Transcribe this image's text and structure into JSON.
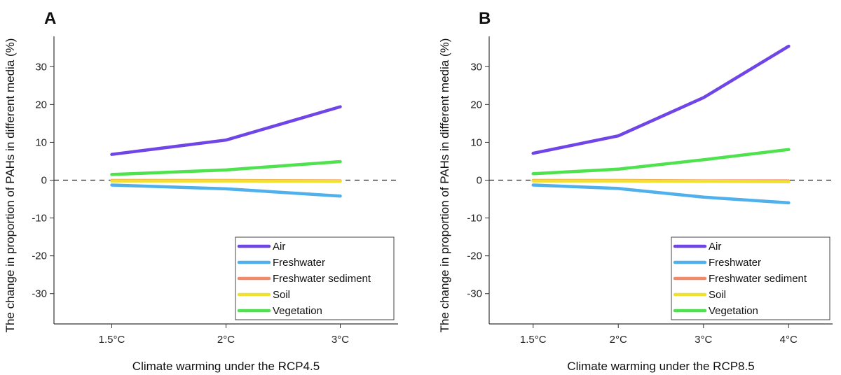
{
  "chart_data": [
    {
      "panel": "A",
      "type": "line",
      "xlabel": "Climate warming under the RCP4.5",
      "ylabel": "The change in proportion of PAHs in different media (%)",
      "categories": [
        "1.5°C",
        "2°C",
        "3°C"
      ],
      "ylim": [
        -38,
        38
      ],
      "yticks": [
        30,
        20,
        10,
        0,
        -10,
        -20,
        -30
      ],
      "reference_line": 0,
      "legend_position": "bottom-right",
      "series": [
        {
          "name": "Air",
          "color": "#6f45e8",
          "values": [
            6.8,
            10.6,
            19.4
          ]
        },
        {
          "name": "Freshwater",
          "color": "#4fb0ec",
          "values": [
            -1.3,
            -2.3,
            -4.2
          ]
        },
        {
          "name": "Freshwater sediment",
          "color": "#f08a6a",
          "values": [
            -0.1,
            -0.1,
            -0.2
          ]
        },
        {
          "name": "Soil",
          "color": "#f2e02e",
          "values": [
            -0.2,
            -0.2,
            -0.3
          ]
        },
        {
          "name": "Vegetation",
          "color": "#4fe24f",
          "values": [
            1.5,
            2.7,
            4.9
          ]
        }
      ]
    },
    {
      "panel": "B",
      "type": "line",
      "xlabel": "Climate warming under the RCP8.5",
      "ylabel": "The change in proportion of PAHs in different media (%)",
      "categories": [
        "1.5°C",
        "2°C",
        "3°C",
        "4°C"
      ],
      "ylim": [
        -38,
        38
      ],
      "yticks": [
        30,
        20,
        10,
        0,
        -10,
        -20,
        -30
      ],
      "reference_line": 0,
      "legend_position": "bottom-right",
      "series": [
        {
          "name": "Air",
          "color": "#6f45e8",
          "values": [
            7.1,
            11.7,
            21.8,
            35.4
          ]
        },
        {
          "name": "Freshwater",
          "color": "#4fb0ec",
          "values": [
            -1.3,
            -2.2,
            -4.5,
            -6.0
          ]
        },
        {
          "name": "Freshwater sediment",
          "color": "#f08a6a",
          "values": [
            -0.1,
            -0.1,
            -0.2,
            -0.2
          ]
        },
        {
          "name": "Soil",
          "color": "#f2e02e",
          "values": [
            -0.2,
            -0.2,
            -0.3,
            -0.4
          ]
        },
        {
          "name": "Vegetation",
          "color": "#4fe24f",
          "values": [
            1.7,
            2.9,
            5.4,
            8.1
          ]
        }
      ]
    }
  ]
}
